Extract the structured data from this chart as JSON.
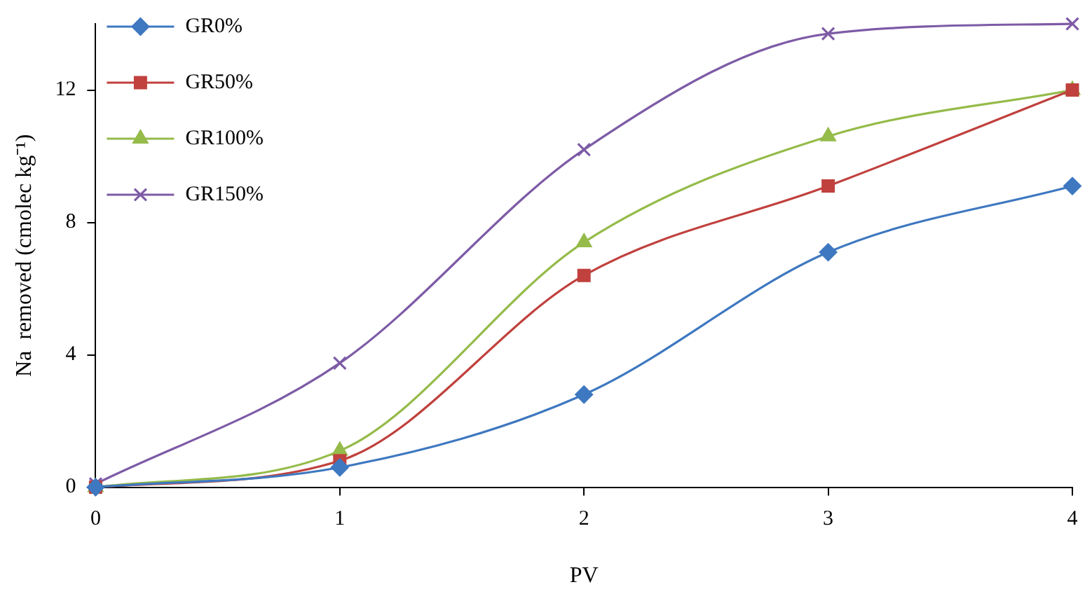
{
  "chart_data": {
    "type": "line",
    "xlabel": "PV",
    "ylabel": "Na  removed (cmolec kg⁻¹)",
    "x": [
      0,
      1,
      2,
      3,
      4
    ],
    "xlim": [
      0,
      4
    ],
    "xticks": [
      0,
      1,
      2,
      3,
      4
    ],
    "ylim": [
      0,
      14
    ],
    "yticks": [
      0,
      4,
      8,
      12
    ],
    "grid": false,
    "legend": "top left",
    "line_style": "solid",
    "series": [
      {
        "name": "GR0%",
        "color": "#3e78c0",
        "marker": "diamond",
        "values": [
          0,
          0.6,
          2.8,
          7.1,
          9.1
        ]
      },
      {
        "name": "GR50%",
        "color": "#c0413d",
        "marker": "square",
        "values": [
          0,
          0.8,
          6.4,
          9.1,
          12
        ]
      },
      {
        "name": "GR100%",
        "color": "#95bb4a",
        "marker": "triangle",
        "values": [
          0,
          1.1,
          7.4,
          10.6,
          12
        ]
      },
      {
        "name": "GR150%",
        "color": "#7d5ba6",
        "marker": "cross",
        "values": [
          0.1,
          3.75,
          10.2,
          13.7,
          14
        ]
      }
    ]
  }
}
